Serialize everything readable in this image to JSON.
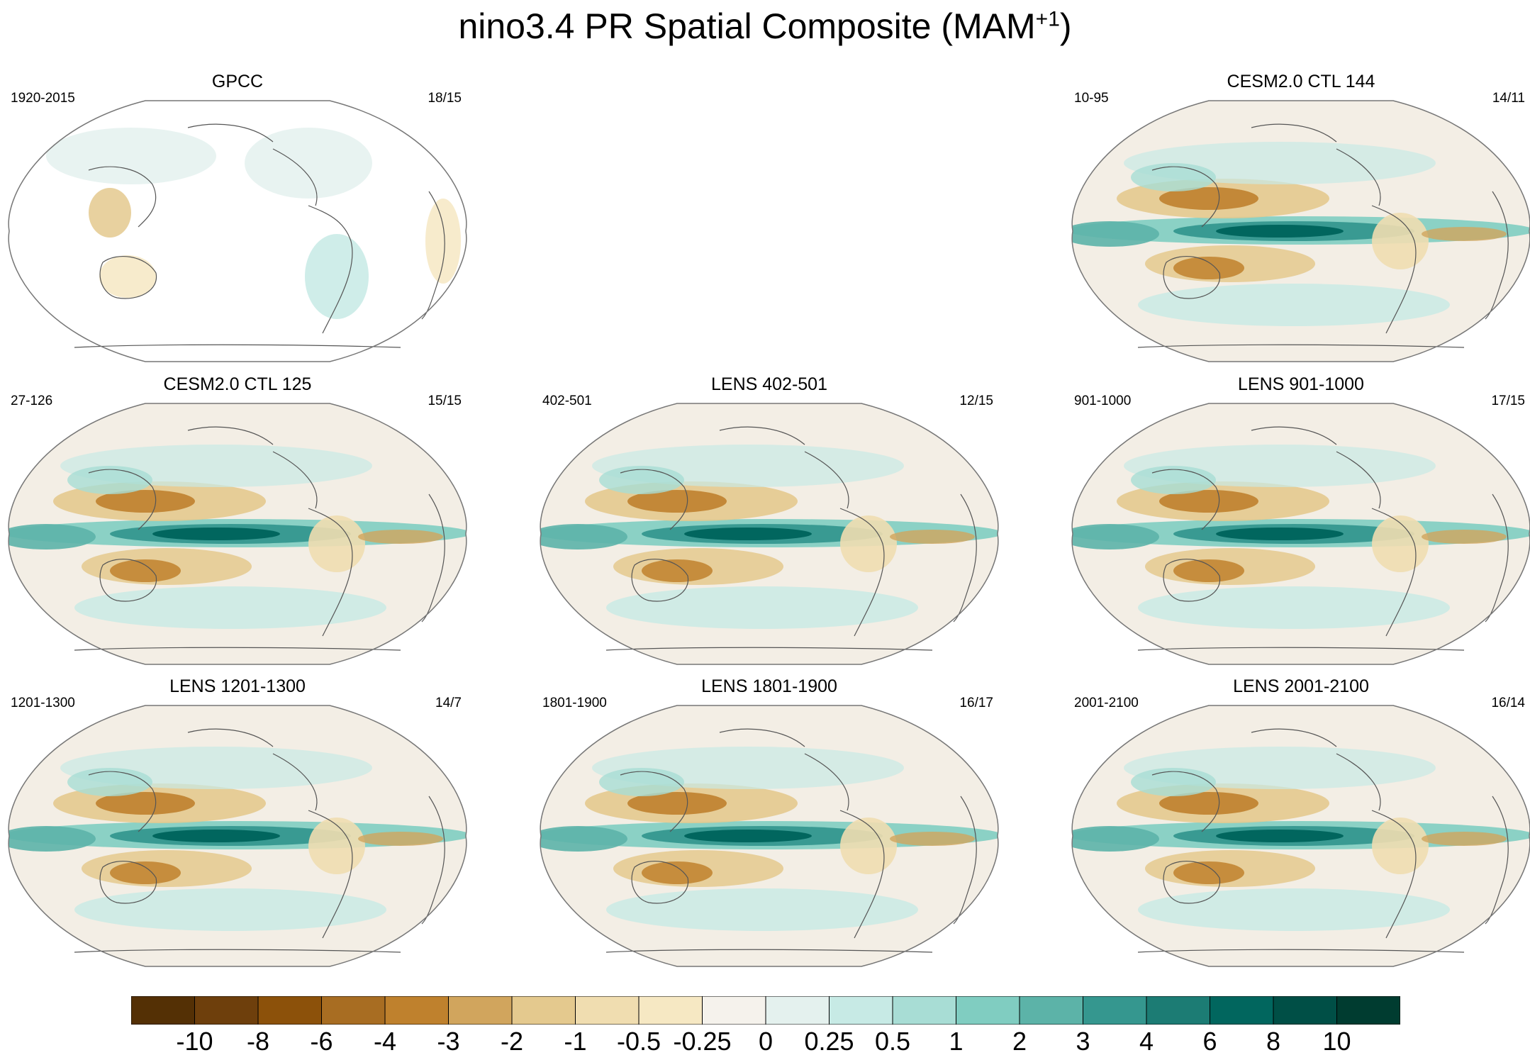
{
  "title_main": "nino3.4 PR Spatial Composite (MAM",
  "title_sup": "+1",
  "title_end": ")",
  "panels": [
    {
      "title": "GPCC",
      "years": "1920-2015",
      "count": "18/15",
      "style": "obs"
    },
    {
      "title": "CESM2.0 CTL 144",
      "years": "10-95",
      "count": "14/11",
      "style": "model"
    },
    {
      "title": "CESM2.0 CTL 125",
      "years": "27-126",
      "count": "15/15",
      "style": "model"
    },
    {
      "title": "LENS 402-501",
      "years": "402-501",
      "count": "12/15",
      "style": "model"
    },
    {
      "title": "LENS 901-1000",
      "years": "901-1000",
      "count": "17/15",
      "style": "model"
    },
    {
      "title": "LENS 1201-1300",
      "years": "1201-1300",
      "count": "14/7",
      "style": "model"
    },
    {
      "title": "LENS 1801-1900",
      "years": "1801-1900",
      "count": "16/17",
      "style": "model"
    },
    {
      "title": "LENS 2001-2100",
      "years": "2001-2100",
      "count": "16/14",
      "style": "model"
    }
  ],
  "colorbar": {
    "colors": [
      "#543005",
      "#6e3f0c",
      "#8c510a",
      "#a86d22",
      "#bf812d",
      "#d1a55d",
      "#e4c98e",
      "#f0ddb0",
      "#f6e8c3",
      "#f5f2ec",
      "#e4f1ee",
      "#c7eae5",
      "#a8ddd5",
      "#80cdc1",
      "#5cb3a8",
      "#35978f",
      "#1c7c74",
      "#01665e",
      "#004f46",
      "#003c30"
    ],
    "labels": [
      "-10",
      "-8",
      "-6",
      "-4",
      "-3",
      "-2",
      "-1",
      "-0.5",
      "-0.25",
      "0",
      "0.25",
      "0.5",
      "1",
      "2",
      "3",
      "4",
      "6",
      "8",
      "10"
    ]
  }
}
